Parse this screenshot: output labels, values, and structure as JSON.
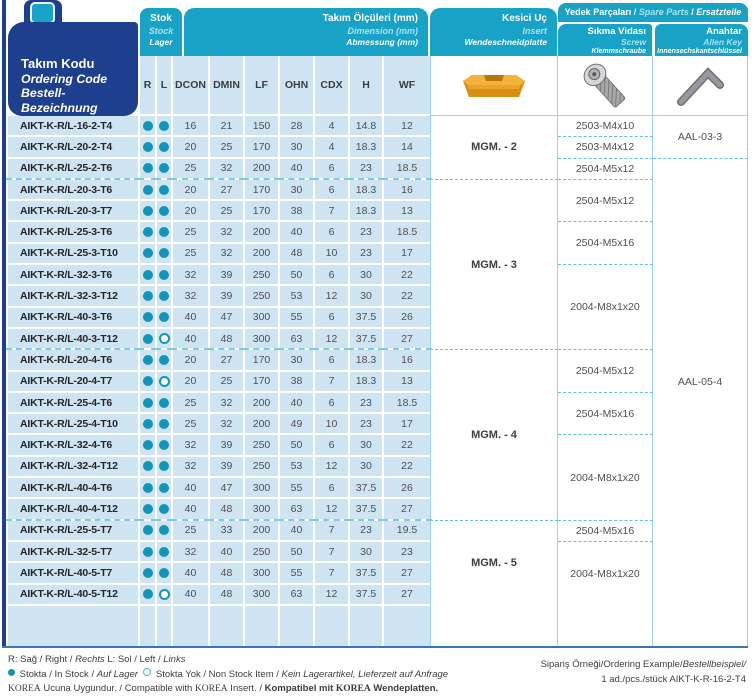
{
  "header": {
    "code": {
      "t1": "Takım Kodu",
      "t2": "Ordering Code",
      "t3": "Bestell-Bezeichnung"
    },
    "stock": {
      "t1": "Stok",
      "t2": "Stock",
      "t3": "Lager"
    },
    "dims": {
      "t1": "Takım Ölçüleri (mm)",
      "t2": "Dimension (mm)",
      "t3": "Abmessung (mm)"
    },
    "insert_col": {
      "t1": "Kesici Uç",
      "t2": "Insert",
      "t3": "Wendeschneidplatte"
    },
    "spare": {
      "t1": "Yedek Parçaları / ",
      "t2": "Spare Parts",
      "t3": " / ",
      "t4": "Ersatzteile"
    },
    "screw_col": {
      "t1": "Sıkma Vidası",
      "t2": "Screw",
      "t3": "Klemmschraube"
    },
    "key_col": {
      "t1": "Anahtar",
      "t2": "Allen Key",
      "t3": "Innensechskantschlüssel"
    },
    "columns": [
      "R",
      "L",
      "DCON",
      "DMIN",
      "LF",
      "OHN",
      "CDX",
      "H",
      "WF"
    ],
    "icons": [
      "grooving-insert-image",
      "clamp-screw-image",
      "allen-key-image"
    ]
  },
  "table": {
    "rows": [
      {
        "code": "AIKT-K-R/L-16-2-T4",
        "r": true,
        "l": true,
        "dims": [
          "16",
          "21",
          "150",
          "28",
          "4",
          "14.8",
          "12"
        ]
      },
      {
        "code": "AIKT-K-R/L-20-2-T4",
        "r": true,
        "l": true,
        "dims": [
          "20",
          "25",
          "170",
          "30",
          "4",
          "18.3",
          "14"
        ]
      },
      {
        "code": "AIKT-K-R/L-25-2-T6",
        "r": true,
        "l": true,
        "dims": [
          "25",
          "32",
          "200",
          "40",
          "6",
          "23",
          "18.5"
        ]
      },
      {
        "code": "AIKT-K-R/L-20-3-T6",
        "r": true,
        "l": true,
        "dims": [
          "20",
          "27",
          "170",
          "30",
          "6",
          "18.3",
          "16"
        ]
      },
      {
        "code": "AIKT-K-R/L-20-3-T7",
        "r": true,
        "l": true,
        "dims": [
          "20",
          "25",
          "170",
          "38",
          "7",
          "18.3",
          "13"
        ]
      },
      {
        "code": "AIKT-K-R/L-25-3-T6",
        "r": true,
        "l": true,
        "dims": [
          "25",
          "32",
          "200",
          "40",
          "6",
          "23",
          "18.5"
        ]
      },
      {
        "code": "AIKT-K-R/L-25-3-T10",
        "r": true,
        "l": true,
        "dims": [
          "25",
          "32",
          "200",
          "48",
          "10",
          "23",
          "17"
        ]
      },
      {
        "code": "AIKT-K-R/L-32-3-T6",
        "r": true,
        "l": true,
        "dims": [
          "32",
          "39",
          "250",
          "50",
          "6",
          "30",
          "22"
        ]
      },
      {
        "code": "AIKT-K-R/L-32-3-T12",
        "r": true,
        "l": true,
        "dims": [
          "32",
          "39",
          "250",
          "53",
          "12",
          "30",
          "22"
        ]
      },
      {
        "code": "AIKT-K-R/L-40-3-T6",
        "r": true,
        "l": true,
        "dims": [
          "40",
          "47",
          "300",
          "55",
          "6",
          "37.5",
          "26"
        ]
      },
      {
        "code": "AIKT-K-R/L-40-3-T12",
        "r": true,
        "l": false,
        "dims": [
          "40",
          "48",
          "300",
          "63",
          "12",
          "37.5",
          "27"
        ]
      },
      {
        "code": "AIKT-K-R/L-20-4-T6",
        "r": true,
        "l": true,
        "dims": [
          "20",
          "27",
          "170",
          "30",
          "6",
          "18.3",
          "16"
        ]
      },
      {
        "code": "AIKT-K-R/L-20-4-T7",
        "r": true,
        "l": false,
        "dims": [
          "20",
          "25",
          "170",
          "38",
          "7",
          "18.3",
          "13"
        ]
      },
      {
        "code": "AIKT-K-R/L-25-4-T6",
        "r": true,
        "l": true,
        "dims": [
          "25",
          "32",
          "200",
          "40",
          "6",
          "23",
          "18.5"
        ]
      },
      {
        "code": "AIKT-K-R/L-25-4-T10",
        "r": true,
        "l": true,
        "dims": [
          "25",
          "32",
          "200",
          "49",
          "10",
          "23",
          "17"
        ]
      },
      {
        "code": "AIKT-K-R/L-32-4-T6",
        "r": true,
        "l": true,
        "dims": [
          "32",
          "39",
          "250",
          "50",
          "6",
          "30",
          "22"
        ]
      },
      {
        "code": "AIKT-K-R/L-32-4-T12",
        "r": true,
        "l": true,
        "dims": [
          "32",
          "39",
          "250",
          "53",
          "12",
          "30",
          "22"
        ]
      },
      {
        "code": "AIKT-K-R/L-40-4-T6",
        "r": true,
        "l": true,
        "dims": [
          "40",
          "47",
          "300",
          "55",
          "6",
          "37.5",
          "26"
        ]
      },
      {
        "code": "AIKT-K-R/L-40-4-T12",
        "r": true,
        "l": true,
        "dims": [
          "40",
          "48",
          "300",
          "63",
          "12",
          "37.5",
          "27"
        ]
      },
      {
        "code": "AIKT-K-R/L-25-5-T7",
        "r": true,
        "l": true,
        "dims": [
          "25",
          "33",
          "200",
          "40",
          "7",
          "23",
          "19.5"
        ]
      },
      {
        "code": "AIKT-K-R/L-32-5-T7",
        "r": true,
        "l": true,
        "dims": [
          "32",
          "40",
          "250",
          "50",
          "7",
          "30",
          "23"
        ]
      },
      {
        "code": "AIKT-K-R/L-40-5-T7",
        "r": true,
        "l": true,
        "dims": [
          "40",
          "48",
          "300",
          "55",
          "7",
          "37.5",
          "27"
        ]
      },
      {
        "code": "AIKT-K-R/L-40-5-T12",
        "r": true,
        "l": false,
        "dims": [
          "40",
          "48",
          "300",
          "63",
          "12",
          "37.5",
          "27"
        ]
      }
    ],
    "insert_groups": [
      {
        "label": "MGM. - 2",
        "span": 3
      },
      {
        "label": "MGM. - 3",
        "span": 8
      },
      {
        "label": "MGM. - 4",
        "span": 8
      },
      {
        "label": "MGM. - 5",
        "span": 4
      }
    ],
    "screws": [
      {
        "label": "2503-M4x10",
        "span": 1
      },
      {
        "label": "2503-M4x12",
        "span": 1
      },
      {
        "label": "2504-M5x12",
        "span": 1
      },
      {
        "label": "2504-M5x12",
        "span": 2
      },
      {
        "label": "2504-M5x16",
        "span": 2
      },
      {
        "label": "2004-M8x1x20",
        "span": 4
      },
      {
        "label": "2504-M5x12",
        "span": 2
      },
      {
        "label": "2504-M5x16",
        "span": 2
      },
      {
        "label": "2004-M8x1x20",
        "span": 4
      },
      {
        "label": "2504-M5x16",
        "span": 1
      },
      {
        "label": "2004-M8x1x20",
        "span": 3
      }
    ],
    "keys": [
      {
        "label": "AAL-03-3",
        "span": 2
      },
      {
        "label": "AAL-05-4",
        "span": 21
      }
    ]
  },
  "footer": {
    "legend_rl": {
      "t1": "R: Sağ / Right / ",
      "t2": "Rechts",
      "t3": "  L: Sol / Left / ",
      "t4": "Links"
    },
    "stock_legend": {
      "t1": " Stokta / In Stock / ",
      "t2": "Auf Lager",
      "t3": " Stokta Yok / Non Stock Item / ",
      "t4": "Kein Lagerartikel, Lieferzeit auf Anfrage"
    },
    "korea": {
      "t1": "KOREA",
      "t2": " Ucuna Uygundur. / Compatible with ",
      "t3": "KOREA",
      "t4": " Insert. / ",
      "t5": "Kompatibel mit ",
      "t6": "KOREA",
      "t7": " Wendeplatten."
    },
    "example": {
      "l1a": "Sipariş Örneği/Ordering Example/",
      "l1b": "Bestellbeispiel/",
      "l2": "1 ad./pcs./stück AIKT-K-R-16-2-T4"
    }
  },
  "colors": {
    "navy": "#1e3e8e",
    "cyan": "#18a2c6",
    "light_blue": "#cfe4f2",
    "dot_teal": "#1095bb",
    "insert_gold": "#eda32a",
    "metal_gray": "#939598"
  }
}
